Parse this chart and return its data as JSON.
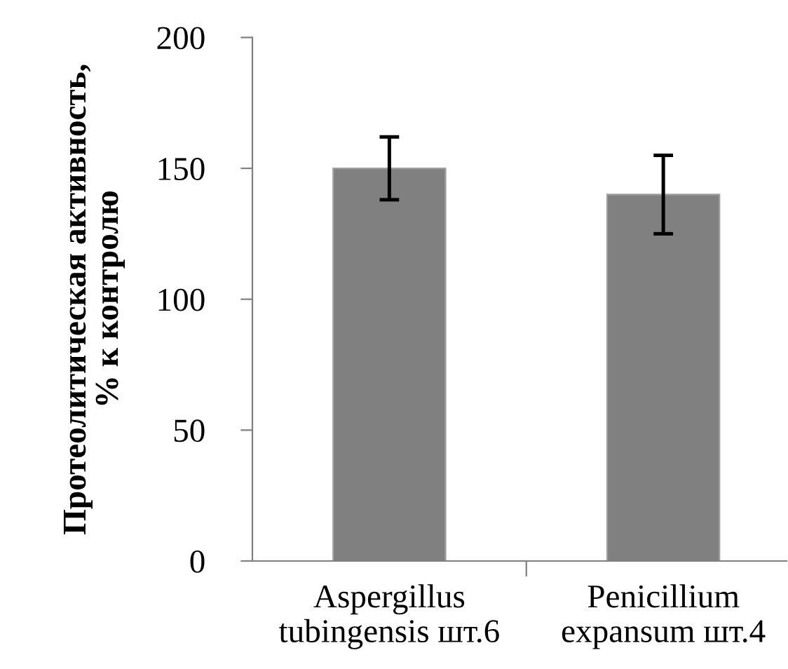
{
  "chart_data": {
    "type": "bar",
    "ylabel": "Протеолитическая активность,\n% к контролю",
    "categories": [
      "Aspergillus\ntubingensis шт.6",
      "Penicillium\nexpansum шт.4"
    ],
    "values": [
      150,
      140
    ],
    "errors": [
      12,
      15
    ],
    "color": "#808080",
    "ylim": [
      0,
      200
    ],
    "yticks": [
      0,
      50,
      100,
      150,
      200
    ],
    "grid": false,
    "legend": false
  }
}
